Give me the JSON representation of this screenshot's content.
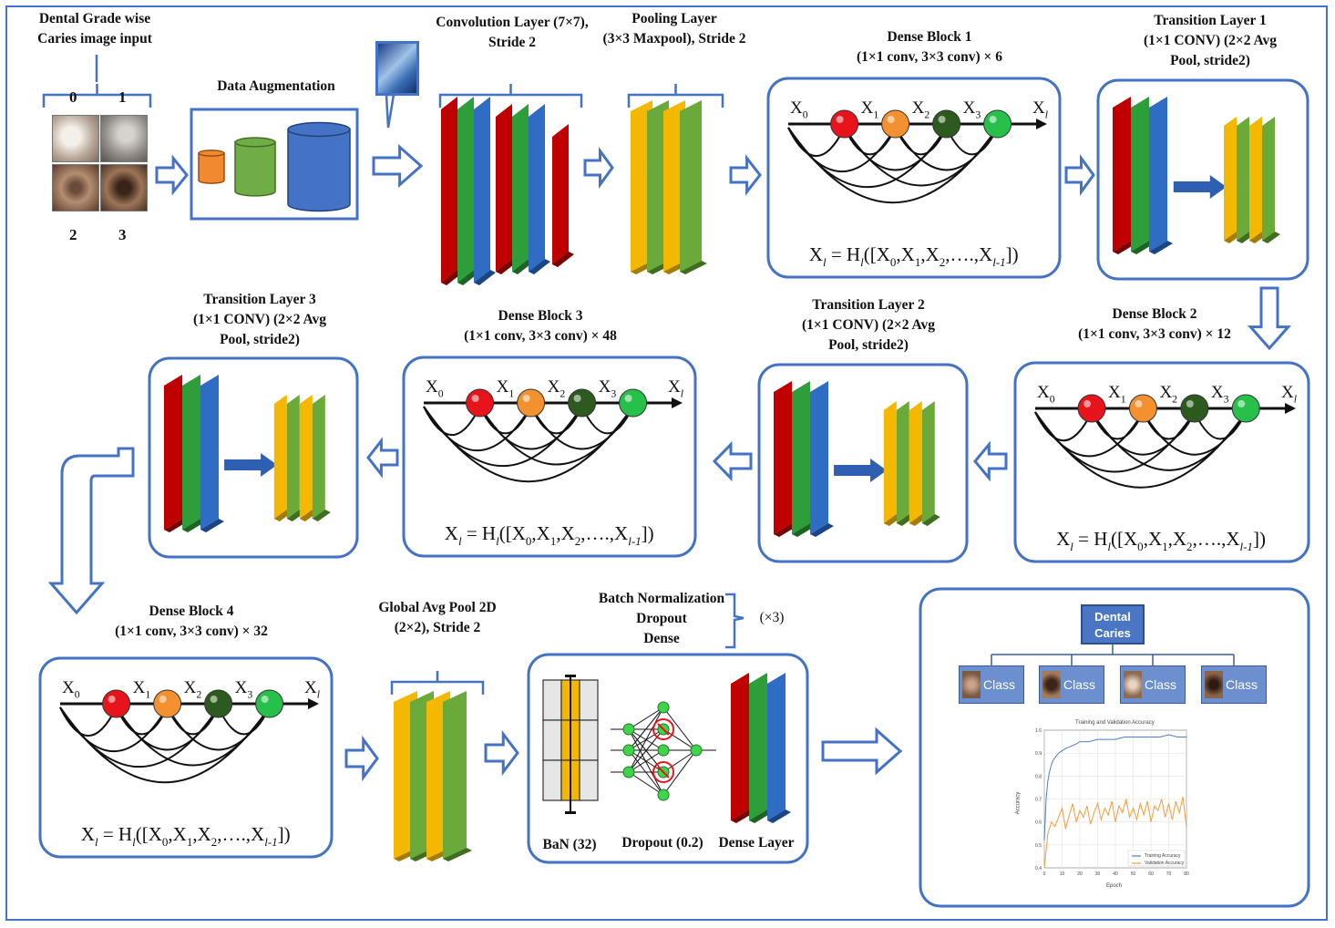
{
  "input": {
    "title": "Dental Grade wise\nCaries image input",
    "grades": [
      "0",
      "1",
      "2",
      "3"
    ]
  },
  "augmentation": {
    "title": "Data Augmentation"
  },
  "conv": {
    "title": "Convolution Layer (7×7),\nStride 2"
  },
  "pool": {
    "title": "Pooling Layer\n(3×3 Maxpool), Stride 2"
  },
  "dense_block_1": {
    "title": "Dense Block 1\n(1×1 conv, 3×3 conv) × 6"
  },
  "transition_1": {
    "title": "Transition Layer 1\n(1×1 CONV) (2×2 Avg\nPool, stride2)"
  },
  "dense_block_2": {
    "title": "Dense Block 2\n(1×1 conv, 3×3 conv) × 12"
  },
  "transition_2": {
    "title": "Transition Layer 2\n(1×1 CONV) (2×2 Avg\nPool, stride2)"
  },
  "dense_block_3": {
    "title": "Dense Block 3\n(1×1 conv, 3×3 conv) × 48"
  },
  "transition_3": {
    "title": "Transition Layer 3\n(1×1 CONV) (2×2 Avg\nPool, stride2)"
  },
  "dense_block_4": {
    "title": "Dense Block 4\n(1×1 conv, 3×3 conv) × 32"
  },
  "gap": {
    "title": "Global Avg Pool 2D\n(2×2), Stride 2"
  },
  "head": {
    "title": "Batch Normalization\nDropout\nDense",
    "repeat": "(×3)",
    "bn_label": "BaN (32)",
    "dropout_label": "Dropout (0.2)",
    "dense_label": "Dense Layer"
  },
  "dense_nodes": {
    "x0": "X",
    "x0_sub": "0",
    "x1": "X",
    "x1_sub": "1",
    "x2": "X",
    "x2_sub": "2",
    "x3": "X",
    "x3_sub": "3",
    "xl": "X",
    "xl_sub": "l"
  },
  "formula": {
    "lhs": "X",
    "lhs_sub": "l",
    "eq": " = H",
    "h_sub": "l",
    "open": "([X",
    "s0": "0",
    "c1": ",X",
    "s1": "1",
    "c2": ",X",
    "s2": "2",
    "dots": ",….,X",
    "sl": "l-1",
    "close": "])"
  },
  "output": {
    "root": "Dental\nCaries",
    "classes": [
      "Class 0",
      "Class 1",
      "Class 2",
      "Class 3"
    ],
    "chart_title": "Training and Validation Accuracy",
    "xlabel": "Epoch",
    "ylabel": "Accuracy",
    "legend": [
      "Training Accuracy",
      "Validation Accuracy"
    ]
  },
  "chart_data": {
    "type": "line",
    "title": "Training and Validation Accuracy",
    "xlabel": "Epoch",
    "ylabel": "Accuracy",
    "xlim": [
      0,
      80
    ],
    "ylim": [
      0.4,
      1.0
    ],
    "xticks": [
      0,
      10,
      20,
      30,
      40,
      50,
      60,
      70,
      80
    ],
    "yticks": [
      0.4,
      0.5,
      0.6,
      0.7,
      0.8,
      0.9,
      1.0
    ],
    "legend_position": "bottom-right",
    "series": [
      {
        "name": "Training Accuracy",
        "color": "#4c7fd0",
        "x": [
          0,
          1,
          2,
          3,
          4,
          5,
          6,
          8,
          10,
          12,
          15,
          18,
          20,
          25,
          30,
          35,
          40,
          45,
          50,
          55,
          60,
          65,
          70,
          75,
          80
        ],
        "y": [
          0.52,
          0.7,
          0.78,
          0.82,
          0.85,
          0.87,
          0.88,
          0.9,
          0.91,
          0.92,
          0.93,
          0.94,
          0.95,
          0.95,
          0.96,
          0.96,
          0.96,
          0.97,
          0.97,
          0.97,
          0.97,
          0.97,
          0.98,
          0.97,
          0.97
        ]
      },
      {
        "name": "Validation Accuracy",
        "color": "#f39c3a",
        "x": [
          0,
          2,
          4,
          6,
          8,
          10,
          12,
          14,
          16,
          18,
          20,
          22,
          24,
          26,
          28,
          30,
          32,
          34,
          36,
          38,
          40,
          42,
          44,
          46,
          48,
          50,
          52,
          54,
          56,
          58,
          60,
          62,
          64,
          66,
          68,
          70,
          72,
          74,
          76,
          78,
          80
        ],
        "y": [
          0.4,
          0.55,
          0.6,
          0.58,
          0.62,
          0.66,
          0.57,
          0.63,
          0.68,
          0.6,
          0.65,
          0.62,
          0.67,
          0.59,
          0.64,
          0.68,
          0.61,
          0.66,
          0.63,
          0.69,
          0.6,
          0.67,
          0.64,
          0.7,
          0.62,
          0.66,
          0.61,
          0.68,
          0.63,
          0.69,
          0.6,
          0.67,
          0.65,
          0.7,
          0.62,
          0.68,
          0.61,
          0.69,
          0.64,
          0.71,
          0.58
        ]
      }
    ]
  }
}
